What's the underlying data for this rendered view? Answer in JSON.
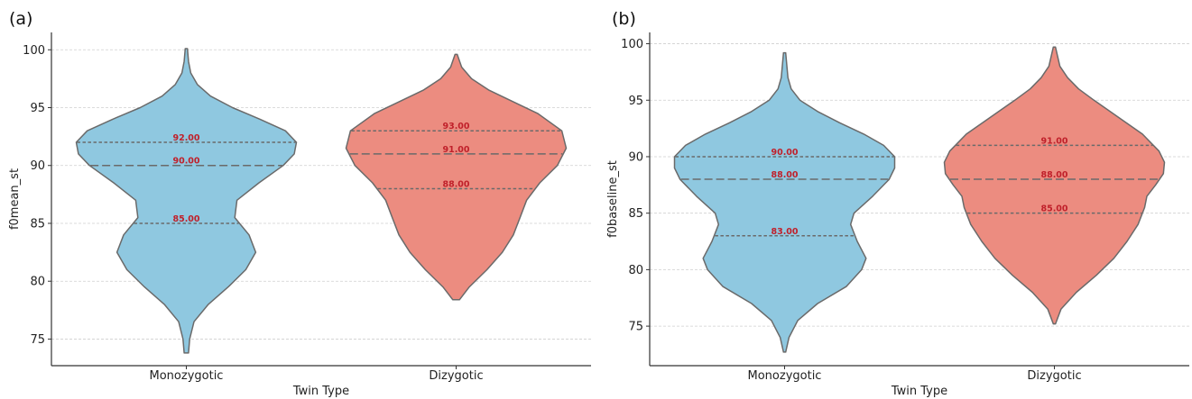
{
  "colors": {
    "Monozygotic": "#8fc8e0",
    "Dizygotic": "#ec8c80",
    "outline": "#6a6a6a",
    "annotation": "#c0202a",
    "grid": "#cfcfcf"
  },
  "chart_data": [
    {
      "panel_label": "(a)",
      "type": "violin",
      "xlabel": "Twin Type",
      "ylabel": "f0mean_st",
      "categories": [
        "Monozygotic",
        "Dizygotic"
      ],
      "ylim": [
        72.7,
        101.5
      ],
      "yticks": [
        75,
        80,
        85,
        90,
        95,
        100
      ],
      "ytick_labels": [
        "75",
        "80",
        "85",
        "90",
        "95",
        "100"
      ],
      "grid": "horizontal dashed",
      "legend": "none",
      "violins": [
        {
          "category": "Monozygotic",
          "min": 73.8,
          "max": 100.1,
          "quartiles": [
            85,
            90,
            92
          ],
          "labels": [
            "85.00",
            "90.00",
            "92.00"
          ],
          "density": [
            [
              73.8,
              0.02
            ],
            [
              75,
              0.03
            ],
            [
              76.5,
              0.07
            ],
            [
              78,
              0.2
            ],
            [
              79.5,
              0.38
            ],
            [
              81,
              0.54
            ],
            [
              82.5,
              0.63
            ],
            [
              84,
              0.57
            ],
            [
              85.5,
              0.44
            ],
            [
              87,
              0.46
            ],
            [
              88.5,
              0.66
            ],
            [
              90,
              0.88
            ],
            [
              91,
              0.98
            ],
            [
              92,
              1.0
            ],
            [
              93,
              0.9
            ],
            [
              94,
              0.67
            ],
            [
              95,
              0.42
            ],
            [
              96,
              0.22
            ],
            [
              97,
              0.1
            ],
            [
              98,
              0.04
            ],
            [
              99,
              0.02
            ],
            [
              100.1,
              0.01
            ]
          ]
        },
        {
          "category": "Dizygotic",
          "min": 78.4,
          "max": 99.6,
          "quartiles": [
            88,
            91,
            93
          ],
          "labels": [
            "88.00",
            "91.00",
            "93.00"
          ],
          "density": [
            [
              78.4,
              0.03
            ],
            [
              79.5,
              0.12
            ],
            [
              81,
              0.28
            ],
            [
              82.5,
              0.42
            ],
            [
              84,
              0.52
            ],
            [
              85.5,
              0.58
            ],
            [
              87,
              0.64
            ],
            [
              88.5,
              0.76
            ],
            [
              90,
              0.92
            ],
            [
              91.5,
              1.0
            ],
            [
              93,
              0.96
            ],
            [
              94.5,
              0.74
            ],
            [
              95.5,
              0.52
            ],
            [
              96.5,
              0.3
            ],
            [
              97.5,
              0.14
            ],
            [
              98.5,
              0.05
            ],
            [
              99.6,
              0.01
            ]
          ]
        }
      ]
    },
    {
      "panel_label": "(b)",
      "type": "violin",
      "xlabel": "Twin Type",
      "ylabel": "f0baseline_st",
      "categories": [
        "Monozygotic",
        "Dizygotic"
      ],
      "ylim": [
        71.5,
        101.0
      ],
      "yticks": [
        75,
        80,
        85,
        90,
        95,
        100
      ],
      "ytick_labels": [
        "75",
        "80",
        "85",
        "90",
        "95",
        "100"
      ],
      "grid": "horizontal dashed",
      "legend": "none",
      "violins": [
        {
          "category": "Monozygotic",
          "min": 72.7,
          "max": 99.2,
          "quartiles": [
            83,
            88,
            90
          ],
          "labels": [
            "83.00",
            "88.00",
            "90.00"
          ],
          "density": [
            [
              72.7,
              0.01
            ],
            [
              74,
              0.04
            ],
            [
              75.5,
              0.12
            ],
            [
              77,
              0.3
            ],
            [
              78.5,
              0.56
            ],
            [
              80,
              0.7
            ],
            [
              81,
              0.74
            ],
            [
              82.5,
              0.66
            ],
            [
              84,
              0.6
            ],
            [
              85,
              0.63
            ],
            [
              86.5,
              0.8
            ],
            [
              88,
              0.95
            ],
            [
              89,
              1.0
            ],
            [
              90,
              1.0
            ],
            [
              91,
              0.9
            ],
            [
              92,
              0.72
            ],
            [
              93,
              0.5
            ],
            [
              94,
              0.3
            ],
            [
              95,
              0.14
            ],
            [
              96,
              0.06
            ],
            [
              97,
              0.03
            ],
            [
              99.2,
              0.01
            ]
          ]
        },
        {
          "category": "Dizygotic",
          "min": 75.2,
          "max": 99.7,
          "quartiles": [
            85,
            88,
            91
          ],
          "labels": [
            "85.00",
            "88.00",
            "91.00"
          ],
          "density": [
            [
              75.2,
              0.01
            ],
            [
              76.5,
              0.06
            ],
            [
              78,
              0.2
            ],
            [
              79.5,
              0.38
            ],
            [
              81,
              0.54
            ],
            [
              82.5,
              0.66
            ],
            [
              84,
              0.76
            ],
            [
              85.5,
              0.82
            ],
            [
              86.5,
              0.84
            ],
            [
              87.5,
              0.92
            ],
            [
              88.5,
              0.99
            ],
            [
              89.5,
              1.0
            ],
            [
              90.5,
              0.95
            ],
            [
              92,
              0.8
            ],
            [
              93.5,
              0.58
            ],
            [
              95,
              0.36
            ],
            [
              96,
              0.22
            ],
            [
              97,
              0.12
            ],
            [
              98,
              0.05
            ],
            [
              99.7,
              0.01
            ]
          ]
        }
      ]
    }
  ]
}
